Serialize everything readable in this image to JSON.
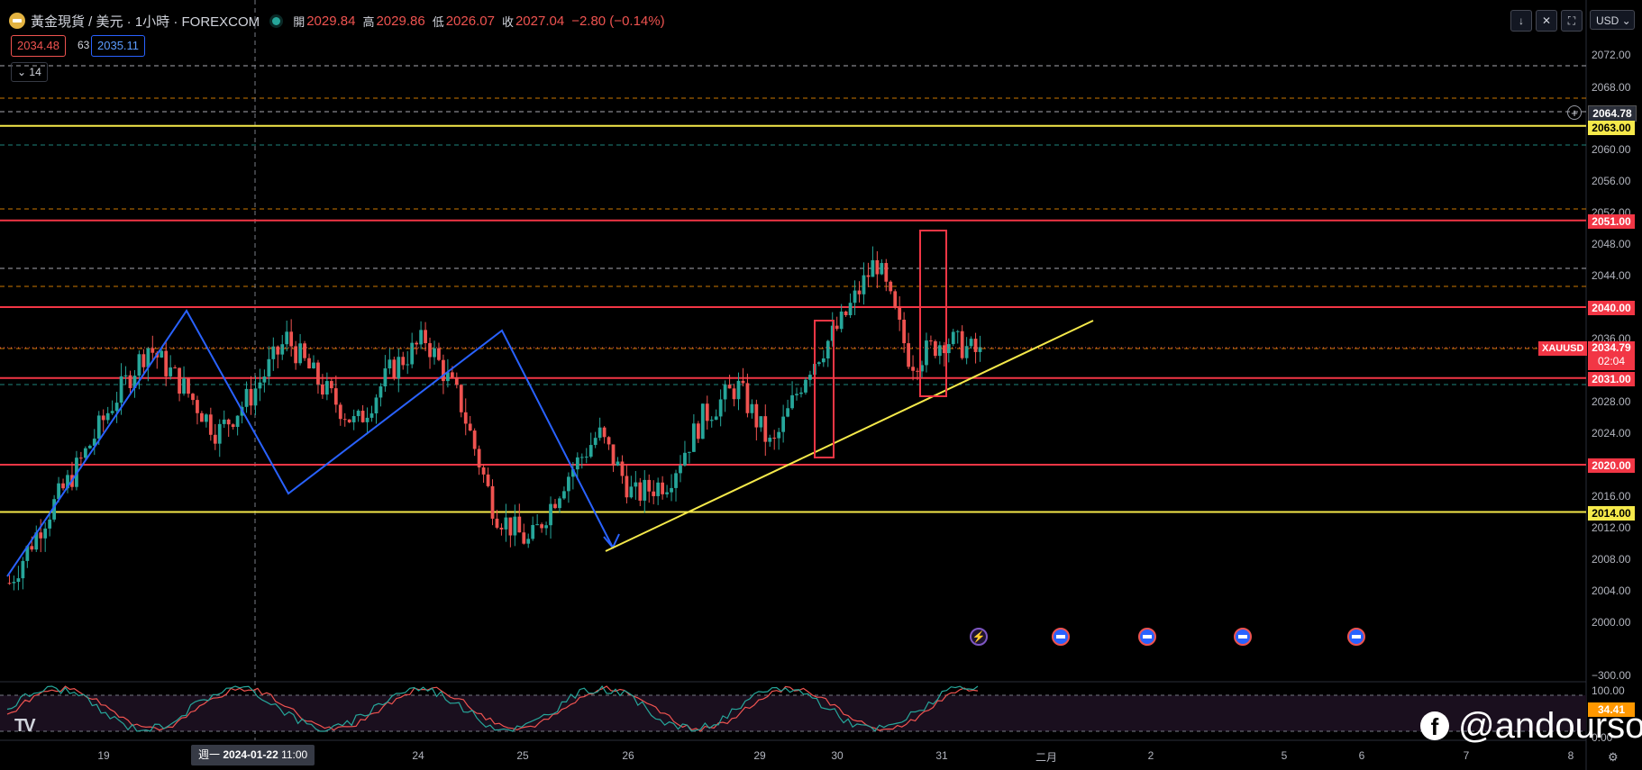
{
  "header": {
    "symbol_name": "黃金現貨 / 美元 · 1小時 · FOREXCOM",
    "open_label": "開",
    "open": "2029.84",
    "high_label": "高",
    "high": "2029.86",
    "low_label": "低",
    "low": "2026.07",
    "close_label": "收",
    "close": "2027.04",
    "change": "−2.80 (−0.14%)"
  },
  "trade": {
    "sell": "2034.48",
    "spread": "63",
    "buy": "2035.11"
  },
  "indicator_collapse": {
    "label": "14",
    "icon": "chevron-down-icon"
  },
  "toolbar": {
    "currency": "USD",
    "icons": [
      "arrow-down-icon",
      "crosshair-icon",
      "fullscreen-icon"
    ]
  },
  "price_axis": {
    "labels": [
      "2072.00",
      "2068.00",
      "2060.00",
      "2056.00",
      "2052.00",
      "2048.00",
      "2044.00",
      "2036.00",
      "2028.00",
      "2024.00",
      "2016.00",
      "2012.00",
      "2008.00",
      "2004.00",
      "2000.00",
      "−300.00"
    ],
    "tags": {
      "alert_line": "2064.78",
      "yellow_top": "2063.00",
      "red_2051": "2051.00",
      "red_2040": "2040.00",
      "current_symbol": "XAUUSD",
      "current_price": "2034.79",
      "current_countdown": "02:04",
      "red_2031": "2031.00",
      "red_2020": "2020.00",
      "yellow_bottom": "2014.00"
    },
    "osc_labels": [
      "100.00",
      "0.00"
    ],
    "osc_value": "34.41"
  },
  "time_axis": {
    "labels": [
      "19",
      "24",
      "25",
      "26",
      "29",
      "30",
      "31",
      "二月",
      "2",
      "5",
      "6",
      "7",
      "8"
    ],
    "crosshair_day": "週一",
    "crosshair_date": "2024-01-22",
    "crosshair_time": "11:00"
  },
  "events": [
    "flash-event-icon",
    "us-flag-icon",
    "us-flag-icon",
    "us-flag-icon",
    "us-flag-icon"
  ],
  "watermark": {
    "text": "@andourson",
    "icon": "facebook-icon"
  },
  "tv_logo": "TV",
  "colors": {
    "up": "#26a69a",
    "down": "#ef5350",
    "support_red": "#f23645",
    "yellow": "#f5e94a",
    "blue": "#2962ff"
  },
  "chart_data": {
    "type": "candlestick",
    "y_range": [
      1996,
      2076
    ],
    "oscillator_range": [
      0,
      100
    ],
    "horizontal_levels": [
      {
        "price": 2063.0,
        "color": "yellow"
      },
      {
        "price": 2051.0,
        "color": "red"
      },
      {
        "price": 2040.0,
        "color": "red"
      },
      {
        "price": 2031.0,
        "color": "red"
      },
      {
        "price": 2020.0,
        "color": "red"
      },
      {
        "price": 2014.0,
        "color": "yellow"
      }
    ],
    "close_path_sample": [
      2005,
      2013,
      2020,
      2028,
      2035,
      2030,
      2024,
      2029,
      2036,
      2030,
      2025,
      2032,
      2036,
      2028,
      2014,
      2010,
      2018,
      2024,
      2016,
      2018,
      2026,
      2030,
      2022,
      2032,
      2038,
      2046,
      2033,
      2036,
      2034
    ]
  }
}
